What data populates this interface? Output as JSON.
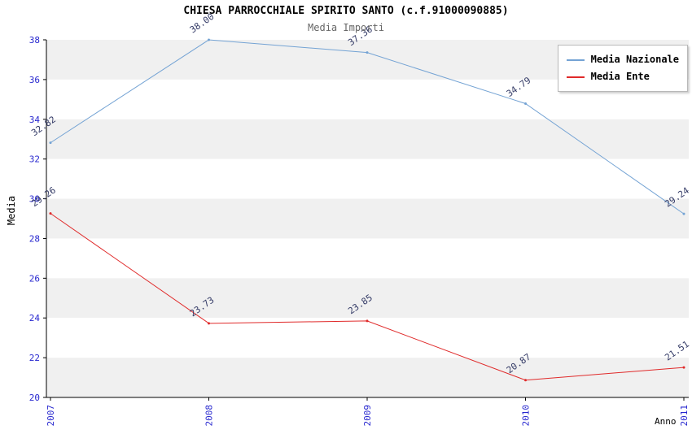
{
  "title": "CHIESA PARROCCHIALE SPIRITO SANTO (c.f.91000090885)",
  "subtitle": "Media Importi",
  "chart_data": {
    "type": "line",
    "x": [
      "2007",
      "2008",
      "2009",
      "2010",
      "2011"
    ],
    "xlabel": "Anno",
    "ylabel": "Media",
    "ylim": [
      20,
      38
    ],
    "ytick_step": 2,
    "grid": "alternating-horizontal-bands",
    "band_colors": [
      "#f0f0f0",
      "#ffffff"
    ],
    "point_label_decimals": 2,
    "legend_position": "top-right",
    "series": [
      {
        "name": "Media Nazionale",
        "color": "#74a3d4",
        "values": [
          32.82,
          38.0,
          37.36,
          34.79,
          29.24
        ]
      },
      {
        "name": "Media Ente",
        "color": "#e02a2a",
        "values": [
          29.26,
          23.73,
          23.85,
          20.87,
          21.51
        ]
      }
    ],
    "colors": {
      "tick_label": "#2727cf",
      "point_label": "#333a66",
      "axis": "#000000",
      "subtitle": "#666666"
    }
  }
}
